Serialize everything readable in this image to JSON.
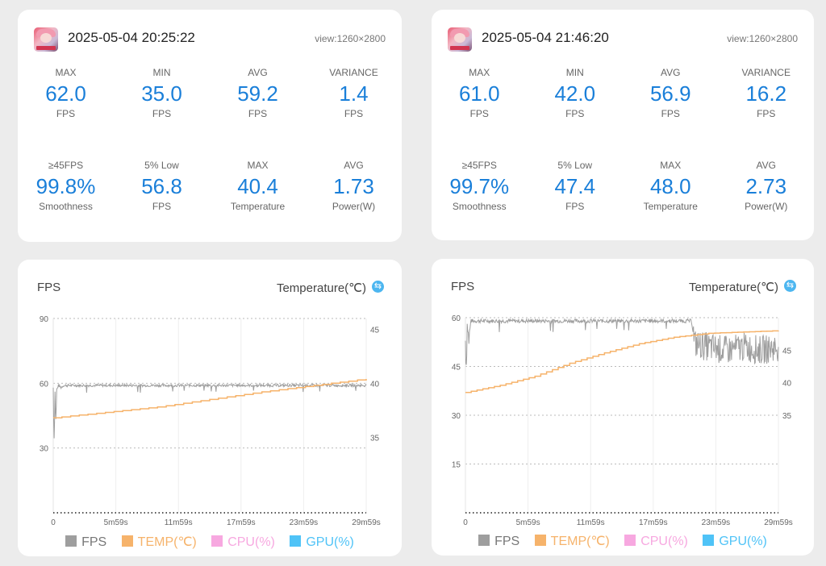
{
  "sessions": [
    {
      "timestamp": "2025-05-04 20:25:22",
      "view": "view:1260×2800",
      "stats": [
        {
          "label": "MAX",
          "value": "62.0",
          "unit": "FPS"
        },
        {
          "label": "MIN",
          "value": "35.0",
          "unit": "FPS"
        },
        {
          "label": "AVG",
          "value": "59.2",
          "unit": "FPS"
        },
        {
          "label": "VARIANCE",
          "value": "1.4",
          "unit": "FPS"
        },
        {
          "label": "≥45FPS",
          "value": "99.8%",
          "unit": "Smoothness"
        },
        {
          "label": "5% Low",
          "value": "56.8",
          "unit": "FPS"
        },
        {
          "label": "MAX",
          "value": "40.4",
          "unit": "Temperature"
        },
        {
          "label": "AVG",
          "value": "1.73",
          "unit": "Power(W)"
        }
      ]
    },
    {
      "timestamp": "2025-05-04 21:46:20",
      "view": "view:1260×2800",
      "stats": [
        {
          "label": "MAX",
          "value": "61.0",
          "unit": "FPS"
        },
        {
          "label": "MIN",
          "value": "42.0",
          "unit": "FPS"
        },
        {
          "label": "AVG",
          "value": "56.9",
          "unit": "FPS"
        },
        {
          "label": "VARIANCE",
          "value": "16.2",
          "unit": "FPS"
        },
        {
          "label": "≥45FPS",
          "value": "99.7%",
          "unit": "Smoothness"
        },
        {
          "label": "5% Low",
          "value": "47.4",
          "unit": "FPS"
        },
        {
          "label": "MAX",
          "value": "48.0",
          "unit": "Temperature"
        },
        {
          "label": "AVG",
          "value": "2.73",
          "unit": "Power(W)"
        }
      ]
    }
  ],
  "charts": [
    {
      "title": "FPS",
      "right_title": "Temperature(℃)",
      "icon": "swap-icon"
    },
    {
      "title": "FPS",
      "right_title": "Temperature(℃)",
      "icon": "swap-icon"
    }
  ],
  "legend": [
    {
      "label": "FPS",
      "color": "#9e9e9e"
    },
    {
      "label": "TEMP(℃)",
      "color": "#f6b36b"
    },
    {
      "label": "CPU(%)",
      "color": "#f7a8e0"
    },
    {
      "label": "GPU(%)",
      "color": "#4fc3f7"
    }
  ],
  "chart_data": [
    {
      "type": "line",
      "x_ticks": [
        "0",
        "5m59s",
        "11m59s",
        "17m59s",
        "23m59s",
        "29m59s"
      ],
      "xlim": [
        0,
        1800
      ],
      "y_left_ticks": [
        "30",
        "60",
        "90"
      ],
      "ylim_left": [
        0,
        90
      ],
      "y_right_ticks": [
        "35",
        "40",
        "45"
      ],
      "ylim_right": [
        28,
        46
      ],
      "series": [
        {
          "name": "FPS",
          "axis": "left",
          "color": "#9e9e9e",
          "x": [
            0,
            5,
            10,
            15,
            20,
            30,
            45,
            60,
            120,
            300,
            600,
            900,
            1200,
            1500,
            1800
          ],
          "y": [
            58,
            35,
            56,
            42,
            57,
            59,
            58,
            59,
            59,
            59,
            59,
            59,
            59,
            59,
            59
          ]
        },
        {
          "name": "TEMP(℃)",
          "axis": "right",
          "color": "#f6b36b",
          "x": [
            0,
            300,
            600,
            900,
            1200,
            1500,
            1800
          ],
          "y": [
            36.8,
            37.3,
            37.8,
            38.5,
            39.2,
            39.8,
            40.4
          ]
        }
      ]
    },
    {
      "type": "line",
      "x_ticks": [
        "0",
        "5m59s",
        "11m59s",
        "17m59s",
        "23m59s",
        "29m59s"
      ],
      "xlim": [
        0,
        1800
      ],
      "y_left_ticks": [
        "15",
        "30",
        "45",
        "60"
      ],
      "ylim_left": [
        0,
        60
      ],
      "y_right_ticks": [
        "35",
        "40",
        "45"
      ],
      "ylim_right": [
        20,
        50
      ],
      "series": [
        {
          "name": "FPS",
          "axis": "left",
          "color": "#9e9e9e",
          "x": [
            0,
            5,
            10,
            20,
            30,
            60,
            300,
            600,
            900,
            1200,
            1300,
            1320,
            1400,
            1500,
            1600,
            1700,
            1800
          ],
          "y": [
            53,
            46,
            58,
            52,
            59,
            59,
            59,
            59,
            59,
            59,
            59,
            52,
            51,
            50,
            51,
            50,
            51
          ]
        },
        {
          "name": "TEMP(℃)",
          "axis": "right",
          "color": "#f6b36b",
          "x": [
            0,
            200,
            400,
            600,
            800,
            1000,
            1200,
            1400,
            1600,
            1800
          ],
          "y": [
            38.5,
            39.6,
            41,
            43,
            44.6,
            46,
            47,
            47.6,
            47.8,
            48.0
          ]
        }
      ]
    }
  ]
}
